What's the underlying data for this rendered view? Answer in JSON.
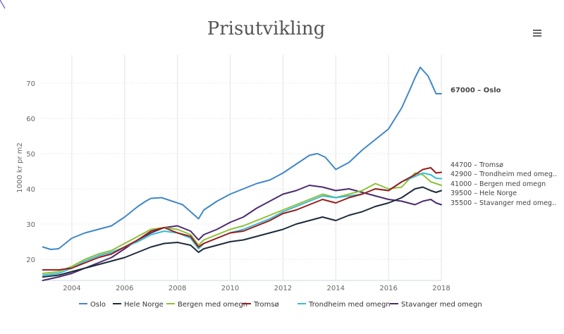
{
  "title": "Prisutvikling",
  "menu_icon": "hamburger-menu-icon",
  "chart_data": {
    "type": "line",
    "title": "Prisutvikling",
    "xlabel": "",
    "ylabel": "1000 kr pr m2",
    "xlim": [
      2002.8,
      2018
    ],
    "ylim": [
      14,
      78
    ],
    "x_ticks": [
      2004,
      2006,
      2008,
      2010,
      2012,
      2014,
      2016,
      2018
    ],
    "x_tick_labels": [
      "2004",
      "2006",
      "2008",
      "2010",
      "2012",
      "2014",
      "2016",
      "2018"
    ],
    "y_ticks": [
      20,
      30,
      40,
      50,
      60,
      70
    ],
    "y_tick_labels": [
      "20",
      "30",
      "40",
      "50",
      "60",
      "70"
    ],
    "grid": "vertical lines and dotted horizontal lines",
    "legend_position": "bottom",
    "end_labels": [
      {
        "series": "Oslo",
        "text": "67000 – Oslo",
        "bold": true
      },
      {
        "series": "Tromsø",
        "text": "44700 – Tromsø"
      },
      {
        "series": "Trondheim med omegn",
        "text": "42900 – Trondheim med omeg.."
      },
      {
        "series": "Bergen med omegn",
        "text": "41000 – Bergen med omegn"
      },
      {
        "series": "Hele Norge",
        "text": "39500 – Hele Norge"
      },
      {
        "series": "Stavanger med omegn",
        "text": "35500 – Stavanger med omeg.."
      }
    ],
    "series": [
      {
        "name": "Oslo",
        "color": "#3f87c8",
        "x": [
          2002.9,
          2003.2,
          2003.5,
          2004.0,
          2004.5,
          2005.0,
          2005.5,
          2006.0,
          2006.5,
          2006.8,
          2007.0,
          2007.4,
          2007.8,
          2008.2,
          2008.5,
          2008.8,
          2009.0,
          2009.5,
          2010.0,
          2010.5,
          2011.0,
          2011.5,
          2012.0,
          2012.5,
          2013.0,
          2013.3,
          2013.6,
          2014.0,
          2014.5,
          2015.0,
          2015.5,
          2016.0,
          2016.5,
          2016.8,
          2017.0,
          2017.2,
          2017.5,
          2017.8,
          2018.0
        ],
        "values": [
          23.5,
          22.8,
          23.0,
          26.0,
          27.5,
          28.5,
          29.5,
          32.0,
          35.0,
          36.5,
          37.3,
          37.5,
          36.5,
          35.5,
          33.5,
          31.5,
          34.0,
          36.5,
          38.5,
          40.0,
          41.5,
          42.5,
          44.5,
          47.0,
          49.5,
          50.0,
          49.0,
          45.5,
          47.5,
          51.0,
          54.0,
          57.0,
          63.0,
          68.0,
          71.5,
          74.5,
          72.0,
          67.0,
          67.0
        ]
      },
      {
        "name": "Hele Norge",
        "color": "#1c2a3a",
        "x": [
          2002.9,
          2003.5,
          2004.0,
          2004.5,
          2005.0,
          2005.5,
          2006.0,
          2006.5,
          2007.0,
          2007.5,
          2008.0,
          2008.5,
          2008.8,
          2009.0,
          2009.5,
          2010.0,
          2010.5,
          2011.0,
          2011.5,
          2012.0,
          2012.5,
          2013.0,
          2013.5,
          2014.0,
          2014.5,
          2015.0,
          2015.5,
          2016.0,
          2016.5,
          2017.0,
          2017.3,
          2017.6,
          2017.8,
          2018.0
        ],
        "values": [
          15.0,
          15.5,
          16.5,
          17.5,
          18.5,
          19.5,
          20.5,
          22.0,
          23.5,
          24.5,
          24.8,
          24.0,
          22.0,
          23.0,
          24.0,
          25.0,
          25.5,
          26.5,
          27.5,
          28.5,
          30.0,
          31.0,
          32.0,
          31.0,
          32.5,
          33.5,
          35.0,
          36.0,
          37.5,
          40.0,
          40.5,
          39.5,
          39.0,
          39.5
        ]
      },
      {
        "name": "Bergen med omegn",
        "color": "#8ec038",
        "x": [
          2002.9,
          2003.5,
          2004.0,
          2004.5,
          2005.0,
          2005.5,
          2006.0,
          2006.5,
          2007.0,
          2007.5,
          2008.0,
          2008.5,
          2008.8,
          2009.0,
          2009.5,
          2010.0,
          2010.5,
          2011.0,
          2011.5,
          2012.0,
          2012.5,
          2013.0,
          2013.5,
          2014.0,
          2014.5,
          2015.0,
          2015.5,
          2016.0,
          2016.5,
          2017.0,
          2017.3,
          2017.6,
          2017.8,
          2018.0
        ],
        "values": [
          16.0,
          16.5,
          18.0,
          20.0,
          21.5,
          22.5,
          24.5,
          26.5,
          28.5,
          29.0,
          28.5,
          27.0,
          24.0,
          25.5,
          27.0,
          28.5,
          29.5,
          31.0,
          32.5,
          34.0,
          35.5,
          37.0,
          38.5,
          37.5,
          38.5,
          39.5,
          41.5,
          40.0,
          40.5,
          44.5,
          44.0,
          42.0,
          41.5,
          41.0
        ]
      },
      {
        "name": "Tromsø",
        "color": "#9b1c1c",
        "x": [
          2002.9,
          2003.5,
          2004.0,
          2004.5,
          2005.0,
          2005.5,
          2006.0,
          2006.5,
          2007.0,
          2007.5,
          2008.0,
          2008.5,
          2008.8,
          2009.0,
          2009.5,
          2010.0,
          2010.5,
          2011.0,
          2011.5,
          2012.0,
          2012.5,
          2013.0,
          2013.5,
          2014.0,
          2014.5,
          2015.0,
          2015.5,
          2016.0,
          2016.5,
          2017.0,
          2017.3,
          2017.6,
          2017.8,
          2018.0
        ],
        "values": [
          17.0,
          17.0,
          17.5,
          19.0,
          20.5,
          21.5,
          23.5,
          25.5,
          28.0,
          29.0,
          27.5,
          26.5,
          23.5,
          24.5,
          26.0,
          27.5,
          28.0,
          29.5,
          31.0,
          33.0,
          34.0,
          35.5,
          37.0,
          36.0,
          37.5,
          38.5,
          40.0,
          39.5,
          42.0,
          44.0,
          45.5,
          46.0,
          44.5,
          44.7
        ]
      },
      {
        "name": "Trondheim med omegn",
        "color": "#35bcd4",
        "x": [
          2002.9,
          2003.5,
          2004.0,
          2004.5,
          2005.0,
          2005.5,
          2006.0,
          2006.5,
          2007.0,
          2007.5,
          2008.0,
          2008.5,
          2008.8,
          2009.0,
          2009.5,
          2010.0,
          2010.5,
          2011.0,
          2011.5,
          2012.0,
          2012.5,
          2013.0,
          2013.5,
          2014.0,
          2014.5,
          2015.0,
          2015.5,
          2016.0,
          2016.5,
          2017.0,
          2017.3,
          2017.6,
          2017.8,
          2018.0
        ],
        "values": [
          15.5,
          16.0,
          17.5,
          19.5,
          21.0,
          22.0,
          23.5,
          25.0,
          27.0,
          28.0,
          27.5,
          26.0,
          23.0,
          24.5,
          26.0,
          27.5,
          28.5,
          30.0,
          31.5,
          33.5,
          35.0,
          36.5,
          38.0,
          37.5,
          38.0,
          38.5,
          40.0,
          39.5,
          42.0,
          43.5,
          44.5,
          44.0,
          43.0,
          42.9
        ]
      },
      {
        "name": "Stavanger med omegn",
        "color": "#4b2a6e",
        "x": [
          2002.9,
          2003.5,
          2004.0,
          2004.5,
          2005.0,
          2005.5,
          2006.0,
          2006.5,
          2007.0,
          2007.5,
          2008.0,
          2008.5,
          2008.8,
          2009.0,
          2009.5,
          2010.0,
          2010.5,
          2011.0,
          2011.5,
          2012.0,
          2012.5,
          2013.0,
          2013.5,
          2014.0,
          2014.5,
          2015.0,
          2015.5,
          2016.0,
          2016.5,
          2017.0,
          2017.3,
          2017.6,
          2017.8,
          2018.0
        ],
        "values": [
          14.0,
          15.0,
          16.0,
          17.5,
          19.0,
          20.5,
          23.0,
          25.5,
          27.5,
          29.0,
          29.5,
          28.0,
          25.5,
          27.0,
          28.5,
          30.5,
          32.0,
          34.5,
          36.5,
          38.5,
          39.5,
          41.0,
          40.5,
          39.5,
          40.0,
          39.0,
          38.0,
          37.0,
          36.5,
          35.5,
          36.5,
          37.0,
          36.0,
          35.5
        ]
      }
    ]
  }
}
